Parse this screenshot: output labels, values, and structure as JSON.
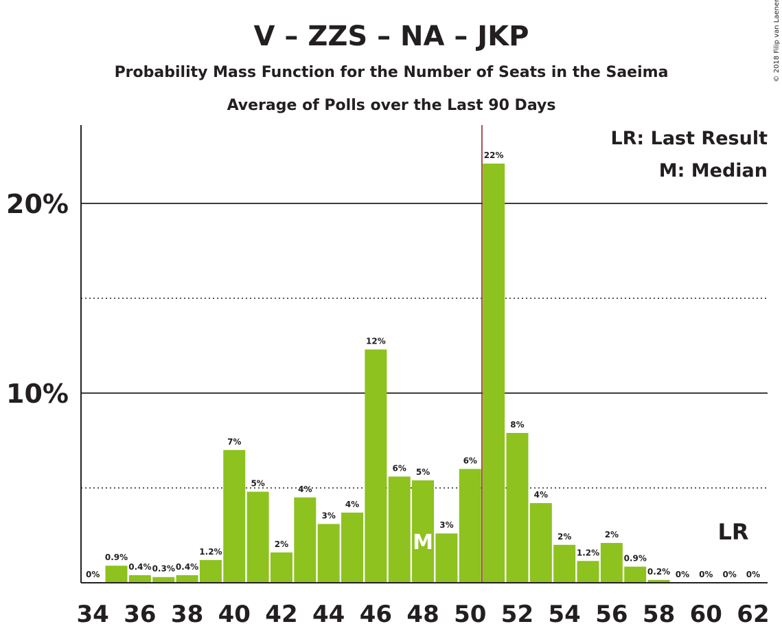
{
  "chart_data": {
    "type": "bar",
    "title": "V – ZZS – NA – JKP",
    "subtitle": "Probability Mass Function for the Number of Seats in the Saeima",
    "subtitle2": "Average of Polls over the Last 90 Days",
    "copyright": "© 2018 Filip van Laenen",
    "legend": {
      "last_result": "LR: Last Result",
      "median": "M: Median"
    },
    "bar_color": "#8dc21f",
    "last_result_line_color": "#8b1a1a",
    "x": [
      34,
      35,
      36,
      37,
      38,
      39,
      40,
      41,
      42,
      43,
      44,
      45,
      46,
      47,
      48,
      49,
      50,
      51,
      52,
      53,
      54,
      55,
      56,
      57,
      58,
      59,
      60,
      61,
      62
    ],
    "values": [
      0,
      0.9,
      0.4,
      0.3,
      0.4,
      1.2,
      7.0,
      4.8,
      1.6,
      4.5,
      3.1,
      3.7,
      12.3,
      5.6,
      5.4,
      2.6,
      6.0,
      22.1,
      7.9,
      4.2,
      2.0,
      1.15,
      2.1,
      0.85,
      0.15,
      0,
      0,
      0,
      0
    ],
    "labels": [
      "0%",
      "0.9%",
      "0.4%",
      "0.3%",
      "0.4%",
      "1.2%",
      "7%",
      "5%",
      "2%",
      "4%",
      "3%",
      "4%",
      "12%",
      "6%",
      "5%",
      "3%",
      "6%",
      "22%",
      "8%",
      "4%",
      "2%",
      "1.2%",
      "2%",
      "0.9%",
      "0.2%",
      "0%",
      "0%",
      "0%",
      "0%"
    ],
    "x_tick_labels": [
      "34",
      "36",
      "38",
      "40",
      "42",
      "44",
      "46",
      "48",
      "50",
      "52",
      "54",
      "56",
      "58",
      "60",
      "62"
    ],
    "y_tick_labels": [
      {
        "value": 10,
        "label": "10%"
      },
      {
        "value": 20,
        "label": "20%"
      }
    ],
    "ylim": [
      0,
      24
    ],
    "grid_solid": [
      10,
      20
    ],
    "grid_dotted": [
      5,
      15
    ],
    "median_seat": 48,
    "median_marker": "M",
    "last_result_seat": 50.5,
    "last_result_marker": "LR"
  }
}
